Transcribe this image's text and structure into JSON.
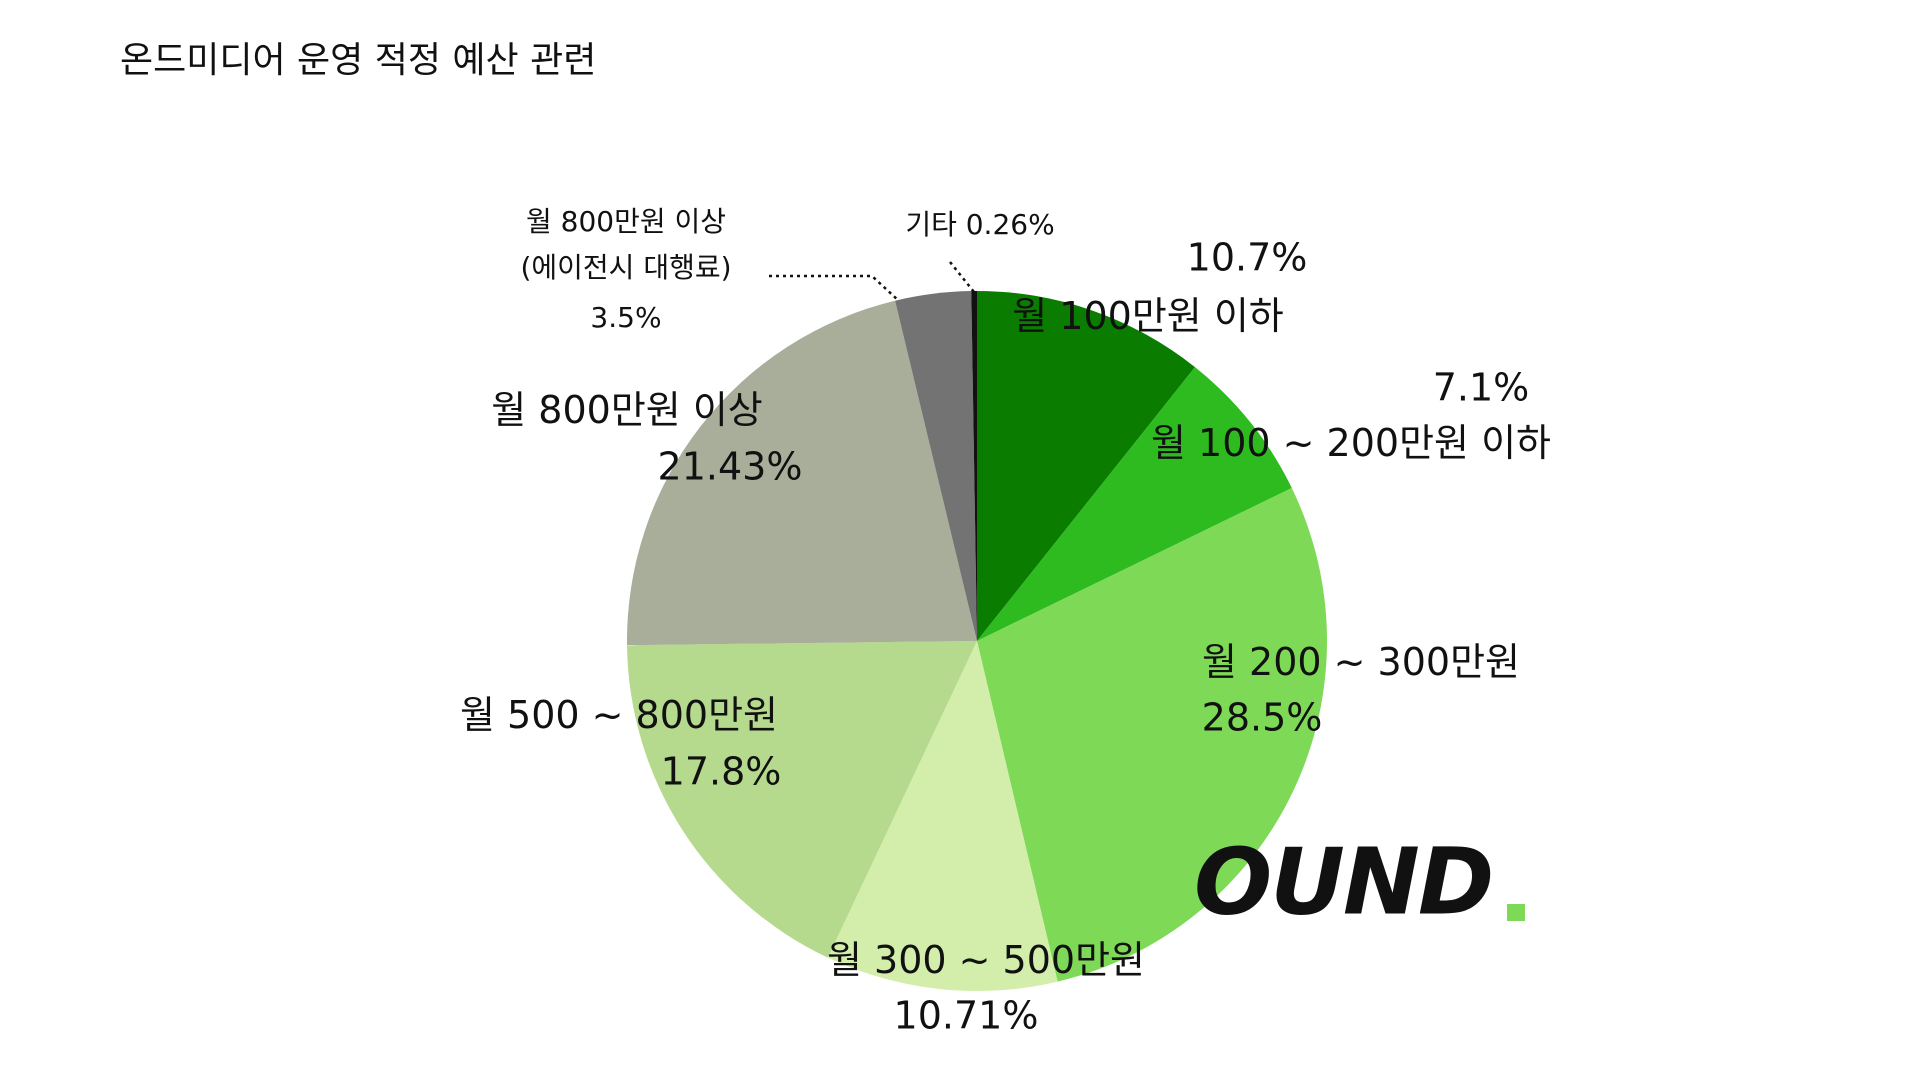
{
  "chart_data": {
    "type": "pie",
    "title": "온드미디어 운영 적정 예산 관련",
    "categories": [
      "월 100만원 이하",
      "월 100 ~ 200만원 이하",
      "월 200 ~ 300만원",
      "월 300 ~ 500만원",
      "월 500 ~ 800만원",
      "월 800만원 이상",
      "월 800만원 이상\n(에이전시 대행료)",
      "기타"
    ],
    "values": [
      10.7,
      7.1,
      28.5,
      10.71,
      17.8,
      21.43,
      3.5,
      0.26
    ],
    "value_labels": [
      "10.7%",
      "7.1%",
      "28.5%",
      "10.71%",
      "17.8%",
      "21.43%",
      "3.5%",
      "0.26%"
    ],
    "colors": [
      "#0a7d00",
      "#2dbb1f",
      "#7ed957",
      "#d3edaa",
      "#b5d98d",
      "#a8ae9a",
      "#737373",
      "#111111"
    ]
  },
  "logo": "OUND"
}
